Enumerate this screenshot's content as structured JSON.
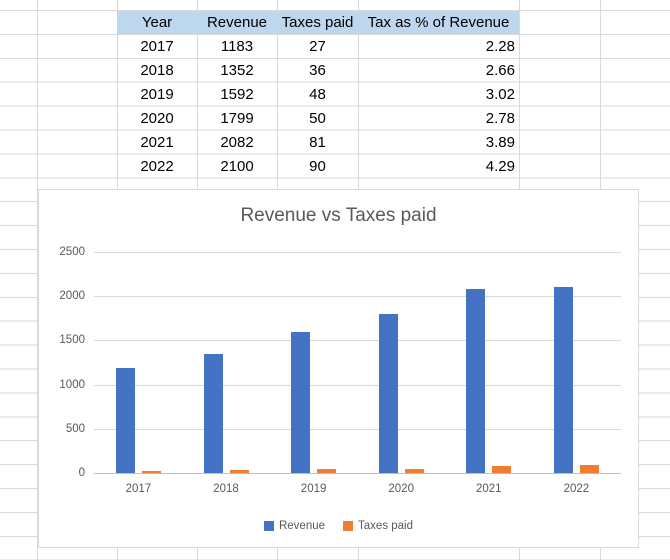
{
  "sheet": {
    "table": {
      "headers": [
        "Year",
        "Revenue",
        "Taxes paid",
        "Tax as % of Revenue"
      ],
      "rows": [
        [
          "2017",
          "1183",
          "27",
          "2.28"
        ],
        [
          "2018",
          "1352",
          "36",
          "2.66"
        ],
        [
          "2019",
          "1592",
          "48",
          "3.02"
        ],
        [
          "2020",
          "1799",
          "50",
          "2.78"
        ],
        [
          "2021",
          "2082",
          "81",
          "3.89"
        ],
        [
          "2022",
          "2100",
          "90",
          "4.29"
        ]
      ],
      "header_fill": "#BDD7EE"
    }
  },
  "chart_data": {
    "type": "bar",
    "title": "Revenue vs Taxes paid",
    "categories": [
      "2017",
      "2018",
      "2019",
      "2020",
      "2021",
      "2022"
    ],
    "series": [
      {
        "name": "Revenue",
        "color": "#4472C4",
        "values": [
          1183,
          1352,
          1592,
          1799,
          2082,
          2100
        ]
      },
      {
        "name": "Taxes paid",
        "color": "#ED7D31",
        "values": [
          27,
          36,
          48,
          50,
          81,
          90
        ]
      }
    ],
    "ylim": [
      0,
      2500
    ],
    "ytick_step": 500,
    "yticks": [
      "0",
      "500",
      "1000",
      "1500",
      "2000",
      "2500"
    ],
    "grid": true,
    "legend_position": "bottom",
    "colors": {
      "title_text": "#595959",
      "axis_text": "#595959",
      "gridline": "#D9D9D9",
      "chart_border": "#D9D9D9",
      "sheet_gridline": "#D9D9D9"
    }
  }
}
